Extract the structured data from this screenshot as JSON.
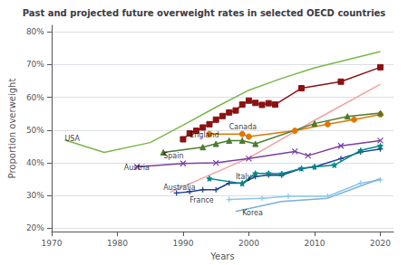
{
  "chart_data": {
    "type": "line",
    "title": "Past and projected future overweight rates in selected OECD countries",
    "x_label": "Years",
    "y_label": "Proportion overweight",
    "xlim": [
      1970,
      2022
    ],
    "ylim": [
      0.19,
      0.82
    ],
    "xticks": [
      1970,
      1980,
      1990,
      2000,
      2010,
      2020
    ],
    "yticks": [
      {
        "value": 0.2,
        "label": "20%"
      },
      {
        "value": 0.3,
        "label": "30%"
      },
      {
        "value": 0.4,
        "label": "40%"
      },
      {
        "value": 0.5,
        "label": "50%"
      },
      {
        "value": 0.6,
        "label": "60%"
      },
      {
        "value": 0.7,
        "label": "70%"
      },
      {
        "value": 0.8,
        "label": "80%"
      }
    ],
    "grid": true,
    "series": [
      {
        "name": "USA",
        "color": "#7ab648",
        "marker": "none",
        "line_style": "solid",
        "x": [
          1972,
          1978,
          1985,
          1990,
          1995,
          2000,
          2005,
          2010,
          2015,
          2020
        ],
        "values": [
          0.47,
          0.432,
          0.462,
          0.515,
          0.57,
          0.622,
          0.658,
          0.69,
          0.715,
          0.74
        ]
      },
      {
        "color": "#f4a0a0",
        "marker": "none",
        "line_style": "solid",
        "x": [
          1988,
          2000,
          2010,
          2020
        ],
        "values": [
          0.31,
          0.415,
          0.53,
          0.64
        ]
      },
      {
        "name": "England",
        "color": "#8b1212",
        "marker": "square",
        "line_style": "solid",
        "x": [
          1990,
          1991,
          1992,
          1993,
          1994,
          1995,
          1996,
          1997,
          1998,
          1999,
          2000,
          2001,
          2002,
          2003,
          2004,
          2008,
          2014,
          2020
        ],
        "values": [
          0.472,
          0.49,
          0.498,
          0.508,
          0.518,
          0.532,
          0.543,
          0.554,
          0.56,
          0.578,
          0.59,
          0.583,
          0.577,
          0.582,
          0.578,
          0.628,
          0.648,
          0.692
        ]
      },
      {
        "name": "Canada",
        "color": "#e07800",
        "marker": "circle",
        "line_style": "solid",
        "x": [
          1994,
          1999,
          2000,
          2007,
          2012,
          2016,
          2020
        ],
        "values": [
          0.488,
          0.488,
          0.48,
          0.498,
          0.518,
          0.532,
          0.548
        ]
      },
      {
        "name": "Spain",
        "color": "#4a7c2f",
        "marker": "triangle",
        "line_style": "solid",
        "x": [
          1987,
          1993,
          1995,
          1997,
          1999,
          2001,
          2010,
          2015,
          2020
        ],
        "values": [
          0.432,
          0.448,
          0.458,
          0.468,
          0.468,
          0.458,
          0.52,
          0.542,
          0.552
        ]
      },
      {
        "name": "Austria",
        "color": "#7b3fa0",
        "marker": "x",
        "line_style": "solid",
        "x": [
          1983,
          1990,
          1995,
          2000,
          2007,
          2009,
          2014,
          2020
        ],
        "values": [
          0.388,
          0.398,
          0.4,
          0.413,
          0.435,
          0.422,
          0.452,
          0.468
        ]
      },
      {
        "name": "Australia",
        "color": "#1a3f8f",
        "marker": "plus",
        "line_style": "solid",
        "x": [
          1989,
          1991,
          1993,
          1995,
          1997,
          1999,
          2001,
          2003,
          2005,
          2008,
          2010,
          2014,
          2017,
          2020
        ],
        "values": [
          0.308,
          0.312,
          0.318,
          0.318,
          0.338,
          0.338,
          0.358,
          0.363,
          0.362,
          0.383,
          0.388,
          0.413,
          0.433,
          0.442
        ]
      },
      {
        "name": "Italy",
        "color": "#008888",
        "marker": "star",
        "line_style": "solid",
        "x": [
          1994,
          1999,
          2001,
          2003,
          2005,
          2008,
          2010,
          2013,
          2017,
          2020
        ],
        "values": [
          0.352,
          0.337,
          0.368,
          0.368,
          0.367,
          0.383,
          0.388,
          0.393,
          0.438,
          0.452
        ]
      },
      {
        "name": "France",
        "color": "#88c8e8",
        "marker": "plus",
        "line_style": "solid",
        "x": [
          1997,
          2002,
          2006,
          2012,
          2017,
          2020
        ],
        "values": [
          0.288,
          0.292,
          0.298,
          0.298,
          0.338,
          0.348
        ]
      },
      {
        "name": "Korea",
        "color": "#7baed8",
        "marker": "none",
        "line_style": "solid",
        "x": [
          1998,
          2005,
          2012,
          2020
        ],
        "values": [
          0.252,
          0.282,
          0.292,
          0.352
        ]
      }
    ],
    "annotations": [
      {
        "text": "USA",
        "x": 1972,
        "y": 0.473
      },
      {
        "text": "England",
        "x": 1991,
        "y": 0.485
      },
      {
        "text": "Canada",
        "x": 1997,
        "y": 0.508
      },
      {
        "text": "Spain",
        "x": 1987,
        "y": 0.422
      },
      {
        "text": "Austria",
        "x": 1981,
        "y": 0.385
      },
      {
        "text": "Australia",
        "x": 1987,
        "y": 0.323
      },
      {
        "text": "Italy",
        "x": 1998,
        "y": 0.358
      },
      {
        "text": "France",
        "x": 1991,
        "y": 0.285
      },
      {
        "text": "Korea",
        "x": 1999,
        "y": 0.248
      }
    ]
  }
}
